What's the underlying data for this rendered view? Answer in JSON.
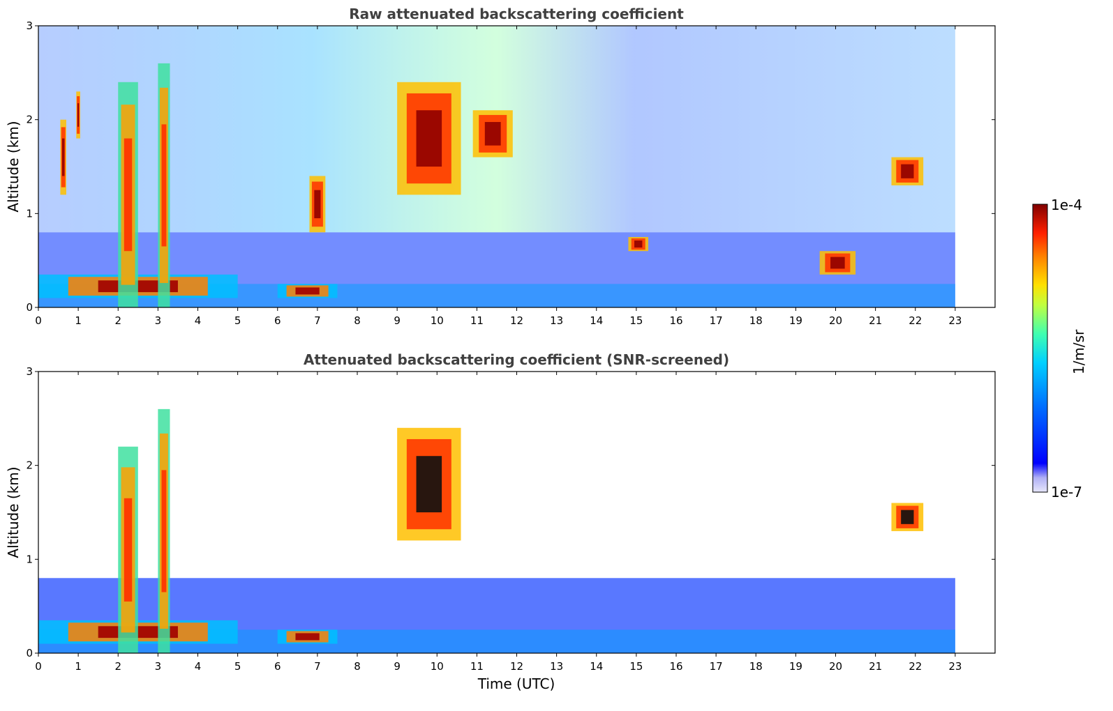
{
  "chart_data": [
    {
      "type": "heatmap",
      "title": "Raw attenuated backscattering coefficient",
      "xlabel": "",
      "ylabel": "Altitude (km)",
      "xlim": [
        0,
        24
      ],
      "ylim": [
        0,
        3
      ],
      "xticks": [
        0,
        1,
        2,
        3,
        4,
        5,
        6,
        7,
        8,
        9,
        10,
        11,
        12,
        13,
        14,
        15,
        16,
        17,
        18,
        19,
        20,
        21,
        22,
        23
      ],
      "yticks": [
        0,
        1,
        2,
        3
      ],
      "data_extent_x": [
        0,
        23
      ],
      "features": [
        {
          "type": "boundary_layer",
          "x": [
            0,
            5.0
          ],
          "y": [
            0.1,
            0.35
          ]
        },
        {
          "type": "boundary_layer",
          "x": [
            6.0,
            7.5
          ],
          "y": [
            0.1,
            0.25
          ]
        },
        {
          "type": "cloud",
          "x": [
            0.55,
            0.7
          ],
          "y": [
            1.2,
            2.0
          ]
        },
        {
          "type": "cloud",
          "x": [
            0.95,
            1.05
          ],
          "y": [
            1.8,
            2.3
          ]
        },
        {
          "type": "precipitation",
          "x": [
            2.0,
            2.5
          ],
          "y": [
            0,
            2.4
          ]
        },
        {
          "type": "precipitation",
          "x": [
            3.0,
            3.3
          ],
          "y": [
            0,
            2.6
          ]
        },
        {
          "type": "cloud",
          "x": [
            6.8,
            7.2
          ],
          "y": [
            0.8,
            1.4
          ]
        },
        {
          "type": "cloud",
          "x": [
            9.0,
            10.6
          ],
          "y": [
            1.2,
            2.4
          ]
        },
        {
          "type": "cloud",
          "x": [
            10.9,
            11.9
          ],
          "y": [
            1.6,
            2.1
          ]
        },
        {
          "type": "cloud",
          "x": [
            14.8,
            15.3
          ],
          "y": [
            0.6,
            0.75
          ]
        },
        {
          "type": "cloud",
          "x": [
            19.6,
            20.5
          ],
          "y": [
            0.35,
            0.6
          ]
        },
        {
          "type": "cloud",
          "x": [
            21.4,
            22.2
          ],
          "y": [
            1.3,
            1.6
          ]
        }
      ]
    },
    {
      "type": "heatmap",
      "title": "Attenuated backscattering coefficient (SNR-screened)",
      "xlabel": "Time (UTC)",
      "ylabel": "Altitude (km)",
      "xlim": [
        0,
        24
      ],
      "ylim": [
        0,
        3
      ],
      "xticks": [
        0,
        1,
        2,
        3,
        4,
        5,
        6,
        7,
        8,
        9,
        10,
        11,
        12,
        13,
        14,
        15,
        16,
        17,
        18,
        19,
        20,
        21,
        22,
        23
      ],
      "yticks": [
        0,
        1,
        2,
        3
      ],
      "data_extent_x": [
        0,
        23
      ],
      "features": [
        {
          "type": "boundary_layer",
          "x": [
            0,
            5.0
          ],
          "y": [
            0.1,
            0.35
          ]
        },
        {
          "type": "boundary_layer",
          "x": [
            6.0,
            7.5
          ],
          "y": [
            0.1,
            0.25
          ]
        },
        {
          "type": "precipitation",
          "x": [
            2.0,
            2.5
          ],
          "y": [
            0,
            2.2
          ]
        },
        {
          "type": "precipitation",
          "x": [
            3.0,
            3.3
          ],
          "y": [
            0,
            2.6
          ]
        },
        {
          "type": "cloud",
          "x": [
            9.0,
            10.6
          ],
          "y": [
            1.2,
            2.4
          ]
        },
        {
          "type": "cloud",
          "x": [
            21.4,
            22.2
          ],
          "y": [
            1.3,
            1.6
          ]
        }
      ]
    }
  ],
  "colorbar": {
    "min_label": "1e-7",
    "max_label": "1e-4",
    "unit_label": "1/m/sr",
    "colors": [
      "#e6e6fa",
      "#b0b0f5",
      "#0000ff",
      "#0070ff",
      "#00d0ff",
      "#40ffb0",
      "#c0ff40",
      "#ffe000",
      "#ff8000",
      "#ff2000",
      "#a00000",
      "#800000"
    ]
  }
}
